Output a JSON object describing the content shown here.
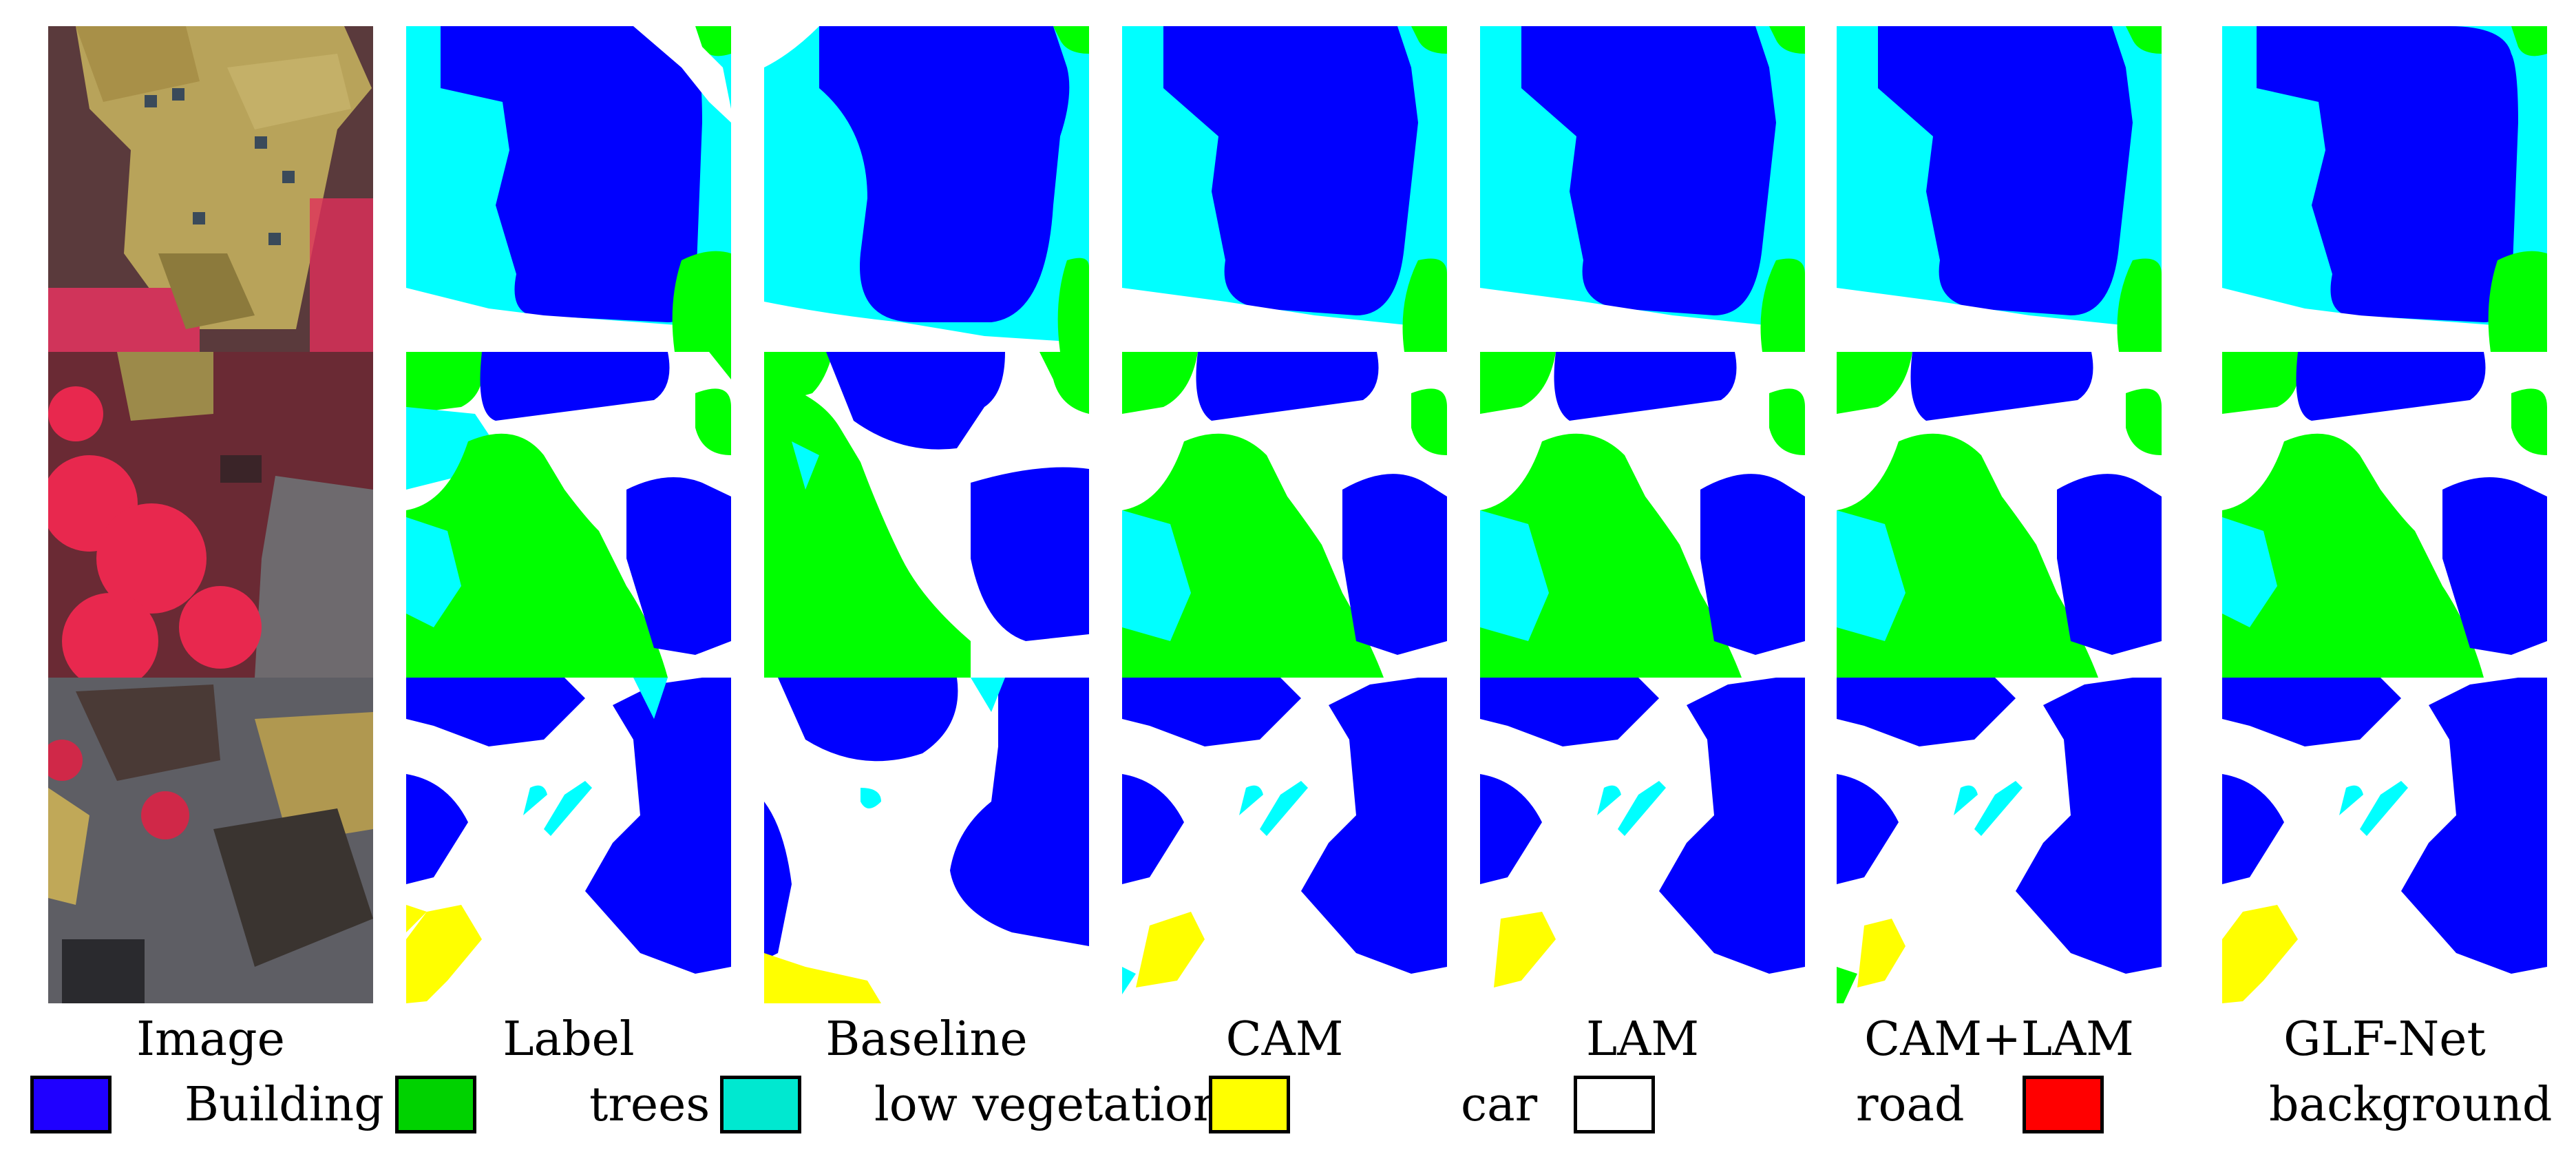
{
  "columns": [
    {
      "title": "Image"
    },
    {
      "title": "Label"
    },
    {
      "title": "Baseline"
    },
    {
      "title": "CAM"
    },
    {
      "title": "LAM"
    },
    {
      "title": "CAM+LAM"
    },
    {
      "title": "GLF-Net"
    }
  ],
  "legend": [
    {
      "label": "Building",
      "color": "#1f00ff"
    },
    {
      "label": "trees",
      "color": "#00d200"
    },
    {
      "label": "low vegetation",
      "color": "#00e8d0"
    },
    {
      "label": "car",
      "color": "#ffff00"
    },
    {
      "label": "road",
      "color": "#ffffff"
    },
    {
      "label": "background",
      "color": "#ff0000"
    }
  ],
  "class_colors": {
    "building": "#0000ff",
    "tree": "#00ff00",
    "low_vegetation": "#00ffff",
    "car": "#ffff00",
    "road": "#ffffff",
    "background": "#ff0000"
  }
}
